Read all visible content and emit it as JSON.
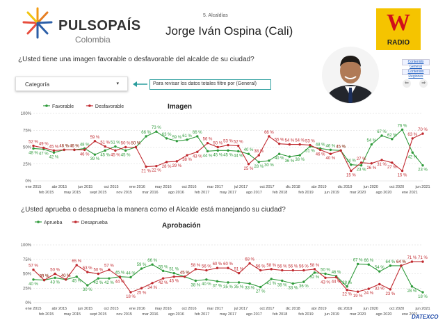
{
  "header": {
    "brand_word": "PULSOPAÍS",
    "brand_sub": "Colombia",
    "section_label": "5. Alcaldías",
    "title": "Jorge Iván Ospina (Cali)",
    "radio_logo_letter": "W",
    "radio_logo_word": "RADIO"
  },
  "controls": {
    "question1": "¿Usted tiene una imagen favorable o desfavorable del alcalde de su ciudad?",
    "question2": "¿Usted aprueba o desaprueba la manera como el Alcalde está manejando su ciudad?",
    "dropdown_label": "Categoría",
    "hint": "Para revisar los datos totales filtre por (General)",
    "link1": "Contenido General",
    "link2": "Contenido Regiones",
    "footer_logo": "DATEXCO"
  },
  "colors": {
    "green": "#2e9a3a",
    "red": "#c0282e",
    "accent": "#2a9d9d"
  },
  "chart_data": [
    {
      "type": "line",
      "title": "Imagen",
      "series": [
        {
          "name": "Favorable",
          "color": "#2e9a3a",
          "values": [
            48,
            47,
            42,
            46,
            46,
            48,
            39,
            45,
            51,
            45,
            50,
            66,
            73,
            63,
            59,
            61,
            66,
            44,
            45,
            45,
            44,
            40,
            28,
            30,
            40,
            36,
            38,
            51,
            48,
            46,
            45,
            24,
            23,
            54,
            67,
            62,
            76,
            42,
            23
          ]
        },
        {
          "name": "Desfavorable",
          "color": "#c0282e",
          "values": [
            52,
            49,
            45,
            46,
            46,
            46,
            59,
            51,
            45,
            50,
            50,
            21,
            22,
            28,
            29,
            38,
            43,
            56,
            50,
            53,
            52,
            25,
            38,
            66,
            55,
            54,
            54,
            53,
            46,
            40,
            45,
            15,
            27,
            26,
            31,
            27,
            15,
            63,
            70
          ]
        }
      ],
      "x_ticks": [
        "ene 2015",
        "abr 2015",
        "jun 2015",
        "oct 2015",
        "ene 2016",
        "may 2016",
        "oct 2016",
        "mar 2017",
        "jul 2017",
        "oct 2017",
        "dic 2018",
        "abr 2019",
        "dic 2019",
        "jun 2020",
        "oct 2020",
        "jun 2021"
      ],
      "x_ticks_lower": [
        "feb 2015",
        "may 2015",
        "sept 2015",
        "nov 2015",
        "mar 2016",
        "ago 2016",
        "feb 2017",
        "may 2017",
        "ago 2017",
        "feb 2018",
        "feb 2019",
        "jun 2019",
        "mar 2020",
        "ago 2020",
        "ene 2021"
      ],
      "y_ticks": [
        "100%",
        "75%",
        "50%",
        "25%",
        "0%"
      ],
      "ylim": [
        0,
        100
      ],
      "label_suffix": " %"
    },
    {
      "type": "line",
      "title": "Aprobación",
      "series": [
        {
          "name": "Aprueba",
          "color": "#2e9a3a",
          "values": [
            40,
            39,
            43,
            40,
            45,
            30,
            42,
            42,
            45,
            44,
            59,
            66,
            55,
            51,
            45,
            38,
            40,
            37,
            35,
            35,
            33,
            27,
            41,
            38,
            33,
            36,
            52,
            50,
            46,
            28,
            67,
            66,
            54,
            64,
            64,
            28,
            18
          ]
        },
        {
          "name": "Desaprueba",
          "color": "#c0282e",
          "values": [
            57,
            39,
            50,
            40,
            65,
            53,
            50,
            57,
            44,
            18,
            25,
            34,
            42,
            45,
            45,
            58,
            56,
            60,
            60,
            51,
            68,
            56,
            58,
            56,
            56,
            56,
            58,
            43,
            44,
            22,
            19,
            24,
            32,
            23,
            64,
            71,
            71
          ]
        }
      ],
      "x_ticks": [
        "ene 2015",
        "abr 2015",
        "jun 2015",
        "oct 2015",
        "ene 2016",
        "may 2016",
        "oct 2016",
        "mar 2017",
        "jul 2017",
        "oct 2017",
        "dic 2018",
        "abr 2019",
        "dic 2019",
        "jun 2020",
        "oct 2020",
        "jun 2021"
      ],
      "x_ticks_lower": [
        "feb 2015",
        "may 2015",
        "sept 2015",
        "nov 2015",
        "mar 2016",
        "ago 2016",
        "feb 2017",
        "may 2017",
        "ago 2017",
        "feb 2018",
        "feb 2019",
        "jun 2019",
        "mar 2020",
        "ago 2020",
        "ene 2021"
      ],
      "y_ticks": [
        "100%",
        "75%",
        "50%",
        "25%",
        "0%"
      ],
      "ylim": [
        0,
        100
      ],
      "label_suffix": " %"
    }
  ]
}
